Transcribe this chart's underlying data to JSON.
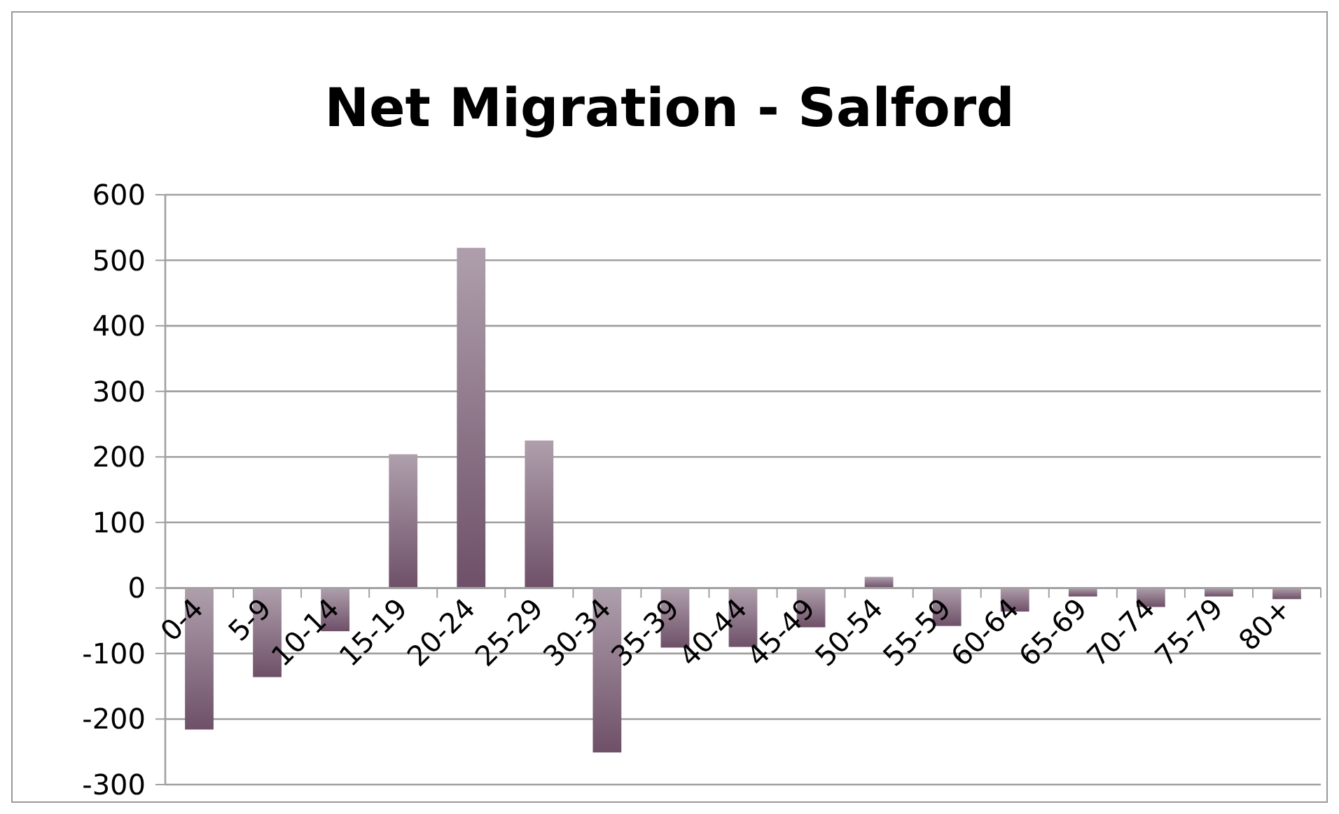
{
  "chart_data": {
    "type": "bar",
    "title": "Net Migration - Salford",
    "categories": [
      "0-4",
      "5-9",
      "10-14",
      "15-19",
      "20-24",
      "25-29",
      "30-34",
      "35-39",
      "40-44",
      "45-49",
      "50-54",
      "55-59",
      "60-64",
      "65-69",
      "70-74",
      "75-79",
      "80+"
    ],
    "values": [
      -216,
      -136,
      -66,
      204,
      519,
      225,
      -251,
      -91,
      -90,
      -60,
      17,
      -58,
      -36,
      -13,
      -29,
      -13,
      -17
    ],
    "color": "#6e5068",
    "ylim": [
      -300,
      600
    ],
    "yticks": [
      -300,
      -200,
      -100,
      0,
      100,
      200,
      300,
      400,
      500,
      600
    ],
    "grid": "y"
  }
}
